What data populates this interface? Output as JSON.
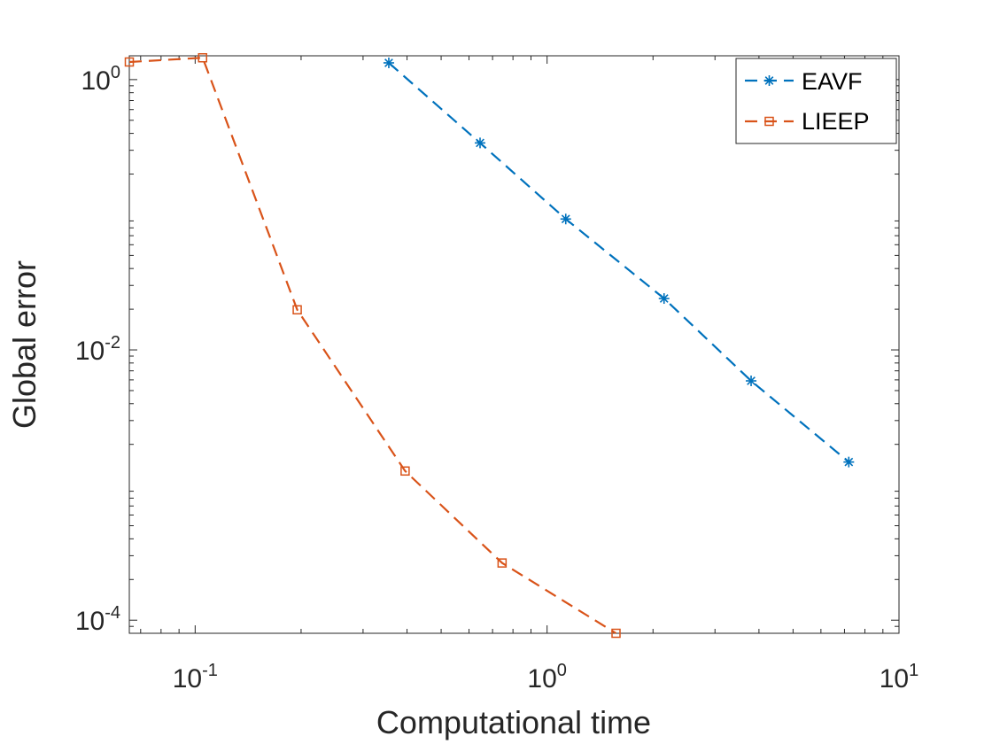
{
  "chart_data": {
    "type": "line",
    "title": "",
    "xlabel": "Computational time",
    "ylabel": "Global error",
    "xscale": "log",
    "yscale": "log",
    "xlim": [
      0.065,
      10
    ],
    "ylim": [
      8e-05,
      1.5
    ],
    "xticks": [
      {
        "value": 0.1,
        "base": "10",
        "exp": "-1"
      },
      {
        "value": 1,
        "base": "10",
        "exp": "0"
      },
      {
        "value": 10,
        "base": "10",
        "exp": "1"
      }
    ],
    "yticks": [
      {
        "value": 0.0001,
        "base": "10",
        "exp": "-4"
      },
      {
        "value": 0.01,
        "base": "10",
        "exp": "-2"
      },
      {
        "value": 1,
        "base": "10",
        "exp": "0"
      }
    ],
    "grid": false,
    "legend_position": "top-right",
    "series": [
      {
        "name": "EAVF",
        "color": "#0072BD",
        "marker": "asterisk",
        "line_style": "dashed",
        "x": [
          0.355,
          0.645,
          1.13,
          2.15,
          3.8,
          7.2
        ],
        "y": [
          1.33,
          0.34,
          0.093,
          0.024,
          0.0059,
          0.00148
        ]
      },
      {
        "name": "LIEEP",
        "color": "#D95319",
        "marker": "square",
        "line_style": "dashed",
        "x": [
          0.065,
          0.105,
          0.195,
          0.395,
          0.745,
          1.57
        ],
        "y": [
          1.35,
          1.45,
          0.0198,
          0.00127,
          0.000265,
          8e-05
        ]
      }
    ]
  }
}
